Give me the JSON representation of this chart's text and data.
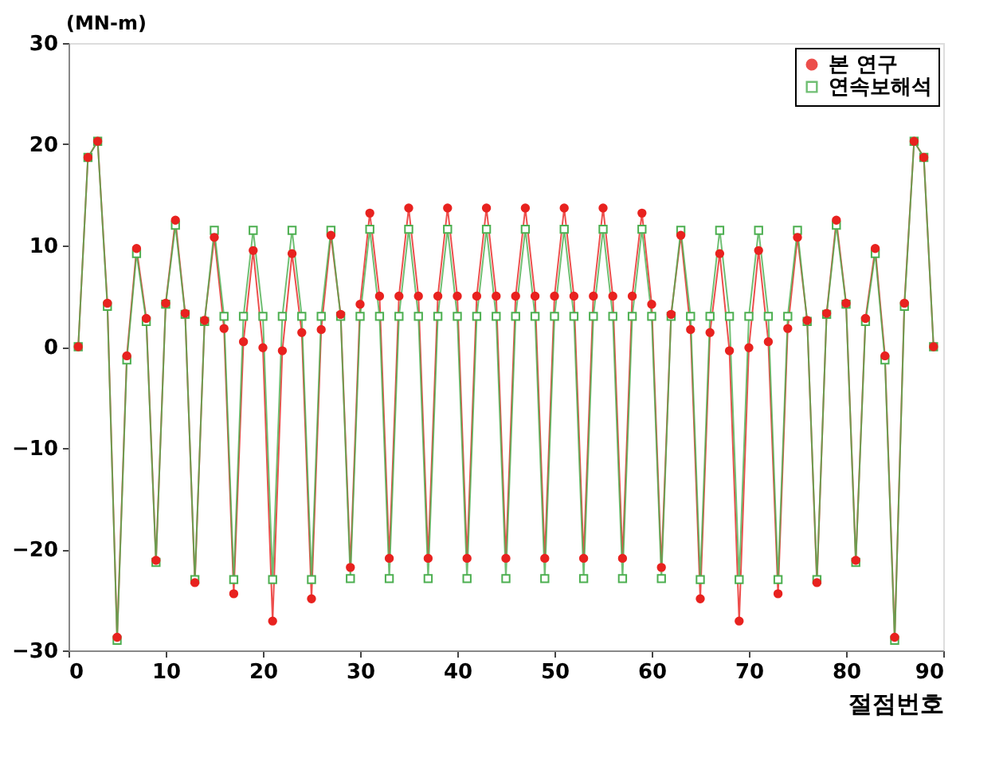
{
  "chart_data": {
    "type": "line",
    "x": [
      1,
      2,
      3,
      4,
      5,
      6,
      7,
      8,
      9,
      10,
      11,
      12,
      13,
      14,
      15,
      16,
      17,
      18,
      19,
      20,
      21,
      22,
      23,
      24,
      25,
      26,
      27,
      28,
      29,
      30,
      31,
      32,
      33,
      34,
      35,
      36,
      37,
      38,
      39,
      40,
      41,
      42,
      43,
      44,
      45,
      46,
      47,
      48,
      49,
      50,
      51,
      52,
      53,
      54,
      55,
      56,
      57,
      58,
      59,
      60,
      61,
      62,
      63,
      64,
      65,
      66,
      67,
      68,
      69,
      70,
      71,
      72,
      73,
      74,
      75,
      76,
      77,
      78,
      79,
      80,
      81,
      82,
      83,
      84,
      85,
      86,
      87,
      88,
      89
    ],
    "series": [
      {
        "name": "본 연구",
        "color": "#e8221f",
        "marker": "circle",
        "values": [
          0,
          18.7,
          20.3,
          4.3,
          -28.7,
          -0.9,
          9.7,
          2.8,
          -21.1,
          4.3,
          12.5,
          3.3,
          -23.3,
          2.6,
          10.8,
          1.8,
          -24.4,
          0.5,
          9.5,
          -0.1,
          -27.1,
          -0.4,
          9.2,
          1.4,
          -24.9,
          1.7,
          11,
          3.2,
          -21.8,
          4.2,
          13.2,
          5,
          -20.9,
          5,
          13.7,
          5,
          -20.9,
          5,
          13.7,
          5,
          -20.9,
          5,
          13.7,
          5,
          -20.9,
          5,
          13.7,
          5,
          -20.9,
          5,
          13.7,
          5,
          -20.9,
          5,
          13.7,
          5,
          -20.9,
          5,
          13.2,
          4.2,
          -21.8,
          3.2,
          11,
          1.7,
          -24.9,
          1.4,
          9.2,
          -0.4,
          -27.1,
          -0.1,
          9.5,
          0.5,
          -24.4,
          1.8,
          10.8,
          2.6,
          -23.3,
          3.3,
          12.5,
          4.3,
          -21.1,
          2.8,
          9.7,
          -0.9,
          -28.7,
          4.3,
          20.3,
          18.7,
          0
        ]
      },
      {
        "name": "연속보해석",
        "color": "#4caf50",
        "marker": "square",
        "values": [
          0,
          18.7,
          20.3,
          4,
          -29,
          -1.3,
          9.2,
          2.5,
          -21.3,
          4.2,
          12,
          3.2,
          -23,
          2.5,
          11.5,
          3,
          -23,
          3,
          11.5,
          3,
          -23,
          3,
          11.5,
          3,
          -23,
          3,
          11.5,
          3,
          -22.9,
          3,
          11.6,
          3,
          -22.9,
          3,
          11.6,
          3,
          -22.9,
          3,
          11.6,
          3,
          -22.9,
          3,
          11.6,
          3,
          -22.9,
          3,
          11.6,
          3,
          -22.9,
          3,
          11.6,
          3,
          -22.9,
          3,
          11.6,
          3,
          -22.9,
          3,
          11.6,
          3,
          -22.9,
          3,
          11.5,
          3,
          -23,
          3,
          11.5,
          3,
          -23,
          3,
          11.5,
          3,
          -23,
          3,
          11.5,
          2.5,
          -23,
          3.2,
          12,
          4.2,
          -21.3,
          2.5,
          9.2,
          -1.3,
          -29,
          4,
          20.3,
          18.7,
          0
        ]
      }
    ],
    "xlabel": "절점번호",
    "ylabel": "(MN-m)",
    "xlim": [
      0,
      90
    ],
    "xticks": [
      0,
      10,
      20,
      30,
      40,
      50,
      60,
      70,
      80,
      90
    ],
    "ylim": [
      -30,
      30
    ],
    "yticks": [
      -30,
      -20,
      -10,
      0,
      10,
      20,
      30
    ],
    "grid": false,
    "legend": "top right"
  }
}
